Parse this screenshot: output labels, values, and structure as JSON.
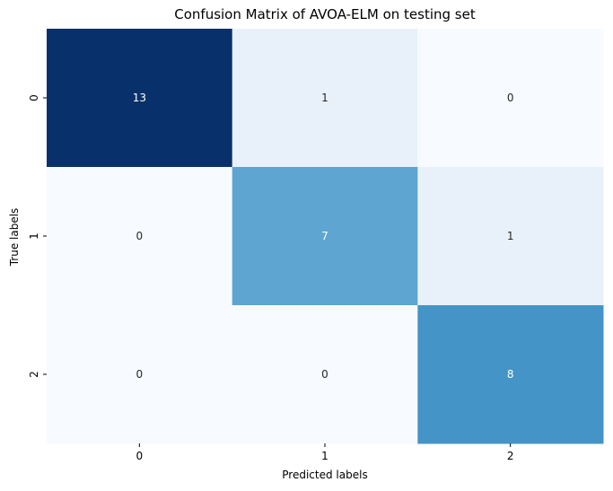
{
  "chart_data": {
    "type": "heatmap",
    "title": "Confusion Matrix of AVOA-ELM on testing set",
    "xlabel": "Predicted labels",
    "ylabel": "True labels",
    "x_categories": [
      "0",
      "1",
      "2"
    ],
    "y_categories": [
      "0",
      "1",
      "2"
    ],
    "values": [
      [
        13,
        1,
        0
      ],
      [
        0,
        7,
        1
      ],
      [
        0,
        0,
        8
      ]
    ],
    "colormap": "Blues",
    "colorbar": false,
    "annotations": true
  }
}
